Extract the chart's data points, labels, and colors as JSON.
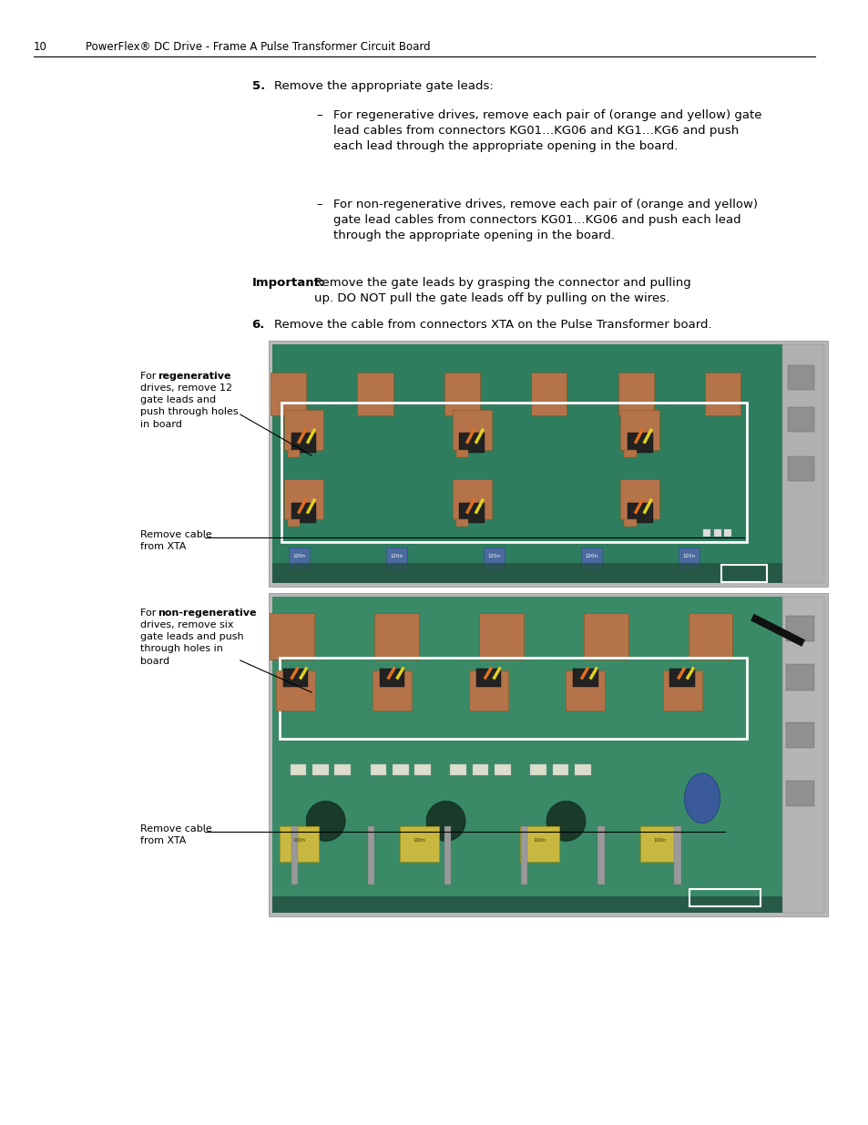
{
  "page_number": "10",
  "header_text": "PowerFlex® DC Drive - Frame A Pulse Transformer Circuit Board",
  "bg_color": "#ffffff",
  "text_color": "#000000",
  "step5_label": "5.",
  "step5_text": "Remove the appropriate gate leads:",
  "bullet1_text": "For regenerative drives, remove each pair of (orange and yellow) gate\nlead cables from connectors KG01…KG06 and KG1…KG6 and push\neach lead through the appropriate opening in the board.",
  "bullet2_text": "For non-regenerative drives, remove each pair of (orange and yellow)\ngate lead cables from connectors KG01…KG06 and push each lead\nthrough the appropriate opening in the board.",
  "important_label": "Important:",
  "important_text": "Remove the gate leads by grasping the connector and pulling\nup. DO NOT pull the gate leads off by pulling on the wires.",
  "step6_label": "6.",
  "step6_text": "Remove the cable from connectors XTA on the Pulse Transformer board.",
  "ann1_bold": "regenerative",
  "ann1_rest": "drives, remove 12\ngate leads and\npush through holes\nin board",
  "ann2_text": "Remove cable\nfrom XTA",
  "ann3_bold": "non-regenerative",
  "ann3_rest": "drives, remove six\ngate leads and push\nthrough holes in\nboard",
  "ann4_text": "Remove cable\nfrom XTA",
  "board_green": "#2e7d5e",
  "board_green2": "#3a8a68",
  "component_brown": "#b5734a",
  "component_blue": "#5b7fb5",
  "component_yellow": "#c8b840",
  "wire_orange": "#e07020",
  "wire_yellow": "#e0d020",
  "silver_gray": "#aaaaaa",
  "dark_gray": "#444444",
  "font_size_header": 8.5,
  "font_size_body": 9.5,
  "font_size_ann": 8.0
}
